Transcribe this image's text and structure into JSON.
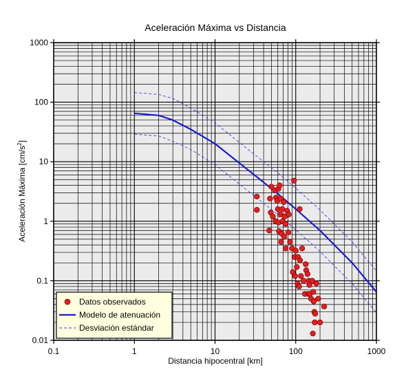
{
  "chart_data": {
    "type": "scatter",
    "title": "Aceleración Máxima vs Distancia",
    "xlabel": "Distancia hipocentral [km]",
    "ylabel_main": "Aceleración Máxima [cm/s",
    "ylabel_sup": "2",
    "ylabel_end": "]",
    "x_scale": "log",
    "y_scale": "log",
    "xlim": [
      0.1,
      1000
    ],
    "ylim": [
      0.01,
      1000
    ],
    "x_ticks": [
      {
        "value": 0.1,
        "label": "0.1"
      },
      {
        "value": 1,
        "label": "1"
      },
      {
        "value": 10,
        "label": "10"
      },
      {
        "value": 100,
        "label": "100"
      },
      {
        "value": 1000,
        "label": "1000"
      }
    ],
    "y_ticks": [
      {
        "value": 0.01,
        "label": "0.01"
      },
      {
        "value": 0.1,
        "label": "0.1"
      },
      {
        "value": 1,
        "label": "1"
      },
      {
        "value": 10,
        "label": "10"
      },
      {
        "value": 100,
        "label": "100"
      },
      {
        "value": 1000,
        "label": "1000"
      }
    ],
    "grid": true,
    "legend_position": "bottom-left",
    "background_color": "#ebebeb",
    "series": [
      {
        "name": "Datos observados",
        "kind": "points",
        "color": "#e02020",
        "points": [
          [
            33,
            2.6
          ],
          [
            33,
            1.55
          ],
          [
            47,
            0.7
          ],
          [
            48,
            2.4
          ],
          [
            49,
            1.4
          ],
          [
            50,
            3.8
          ],
          [
            52,
            1.2
          ],
          [
            55,
            3.3
          ],
          [
            56,
            1.0
          ],
          [
            57,
            2.5
          ],
          [
            59,
            2.2
          ],
          [
            60,
            1.6
          ],
          [
            61,
            3.5
          ],
          [
            61,
            0.95
          ],
          [
            62,
            0.68
          ],
          [
            63,
            4.0
          ],
          [
            64,
            1.3
          ],
          [
            65,
            2.4
          ],
          [
            66,
            0.45
          ],
          [
            67,
            0.62
          ],
          [
            68,
            1.6
          ],
          [
            69,
            1.0
          ],
          [
            71,
            2.1
          ],
          [
            72,
            0.55
          ],
          [
            73,
            1.2
          ],
          [
            75,
            0.9
          ],
          [
            75,
            0.35
          ],
          [
            78,
            1.5
          ],
          [
            81,
            0.65
          ],
          [
            82,
            1.3
          ],
          [
            85,
            0.45
          ],
          [
            90,
            0.35
          ],
          [
            92,
            0.14
          ],
          [
            95,
            4.8
          ],
          [
            97,
            0.25
          ],
          [
            98,
            0.12
          ],
          [
            100,
            0.32
          ],
          [
            103,
            0.17
          ],
          [
            105,
            0.09
          ],
          [
            107,
            0.25
          ],
          [
            110,
            0.08
          ],
          [
            112,
            1.6
          ],
          [
            113,
            0.22
          ],
          [
            116,
            0.12
          ],
          [
            120,
            0.35
          ],
          [
            125,
            0.1
          ],
          [
            130,
            0.06
          ],
          [
            133,
            0.19
          ],
          [
            135,
            0.15
          ],
          [
            140,
            0.13
          ],
          [
            143,
            0.06
          ],
          [
            145,
            0.1
          ],
          [
            148,
            0.085
          ],
          [
            150,
            0.06
          ],
          [
            155,
            0.05
          ],
          [
            160,
            0.1
          ],
          [
            163,
            0.013
          ],
          [
            165,
            0.065
          ],
          [
            167,
            0.045
          ],
          [
            170,
            0.03
          ],
          [
            172,
            0.02
          ],
          [
            174,
            0.028
          ],
          [
            180,
            0.09
          ],
          [
            190,
            0.05
          ],
          [
            200,
            0.02
          ],
          [
            225,
            0.037
          ]
        ]
      },
      {
        "name": "Modelo de atenuación",
        "kind": "line",
        "color": "#1a1ad0",
        "points": [
          [
            1,
            65
          ],
          [
            2,
            60
          ],
          [
            3,
            50
          ],
          [
            5,
            35
          ],
          [
            10,
            20
          ],
          [
            20,
            9.5
          ],
          [
            40,
            4.5
          ],
          [
            60,
            2.9
          ],
          [
            100,
            1.6
          ],
          [
            200,
            0.7
          ],
          [
            500,
            0.2
          ],
          [
            1000,
            0.065
          ]
        ]
      },
      {
        "name": "Desviación estándar",
        "kind": "dashed",
        "color": "#3a3af0",
        "points": [
          [
            1,
            145
          ],
          [
            2,
            135
          ],
          [
            3,
            115
          ],
          [
            5,
            80
          ],
          [
            10,
            45
          ],
          [
            20,
            21
          ],
          [
            40,
            10
          ],
          [
            60,
            6.5
          ],
          [
            100,
            3.6
          ],
          [
            200,
            1.55
          ],
          [
            500,
            0.45
          ],
          [
            1000,
            0.145
          ]
        ]
      },
      {
        "name": "",
        "kind": "dashed",
        "color": "#3a3af0",
        "points": [
          [
            1,
            29
          ],
          [
            2,
            27
          ],
          [
            3,
            22
          ],
          [
            5,
            16
          ],
          [
            10,
            9
          ],
          [
            20,
            4.2
          ],
          [
            40,
            2.0
          ],
          [
            60,
            1.3
          ],
          [
            100,
            0.72
          ],
          [
            200,
            0.31
          ],
          [
            500,
            0.09
          ],
          [
            1000,
            0.029
          ]
        ]
      }
    ]
  }
}
